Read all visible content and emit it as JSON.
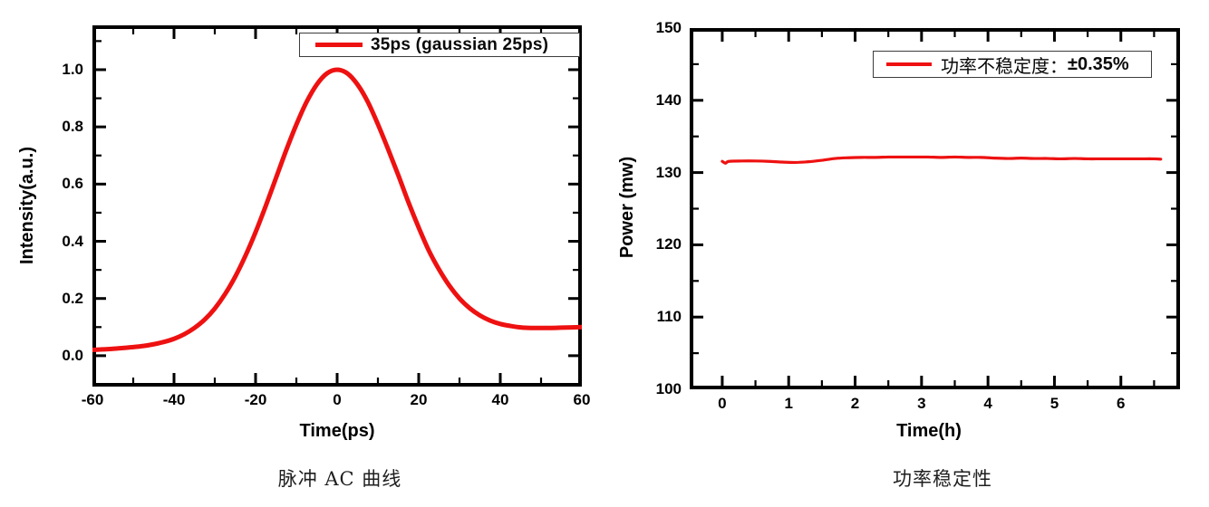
{
  "page": {
    "background": "#ffffff"
  },
  "colors": {
    "series_red": "#ee1111",
    "frame_black": "#000000",
    "text_black": "#000000",
    "caption_gray": "#1f1f1f",
    "legend_border": "#3c3c3c"
  },
  "chart_data": [
    {
      "type": "line",
      "caption": "脉冲 AC 曲线",
      "xlabel": "Time(ps)",
      "ylabel": "Intensity(a.u.)",
      "xlim": [
        -60,
        60
      ],
      "ylim": [
        -0.108,
        1.155
      ],
      "grid": false,
      "x_major_ticks": [
        -60,
        -40,
        -20,
        0,
        20,
        40,
        60
      ],
      "x_tick_labels": [
        "-60",
        "-40",
        "-20",
        "0",
        "20",
        "40",
        "60"
      ],
      "x_minor_step": 10,
      "y_major_ticks": [
        0.0,
        0.2,
        0.4,
        0.6,
        0.8,
        1.0
      ],
      "y_tick_labels": [
        "0.0",
        "0.2",
        "0.4",
        "0.6",
        "0.8",
        "1.0"
      ],
      "y_minor_step": 0.1,
      "legend": {
        "position": "top-right",
        "parts": [
          "35ps (gaussian 25ps)"
        ]
      },
      "series": [
        {
          "name": "35ps (gaussian 25ps)",
          "color": "#ee1111",
          "line_width": 5,
          "x": [
            -60,
            -57.5,
            -55,
            -52.5,
            -50,
            -47.5,
            -45,
            -42.5,
            -40,
            -37.5,
            -35,
            -32.5,
            -30,
            -27.5,
            -25,
            -22.5,
            -20,
            -17.5,
            -15,
            -12.5,
            -10,
            -7.5,
            -5,
            -2.5,
            0,
            2.5,
            5,
            7.5,
            10,
            12.5,
            15,
            17.5,
            20,
            22.5,
            25,
            27.5,
            30,
            32.5,
            35,
            37.5,
            40,
            42.5,
            45,
            47.5,
            50,
            52.5,
            55,
            57.5,
            60
          ],
          "y": [
            0.02,
            0.022,
            0.024,
            0.027,
            0.03,
            0.034,
            0.04,
            0.048,
            0.059,
            0.075,
            0.097,
            0.126,
            0.165,
            0.215,
            0.276,
            0.349,
            0.432,
            0.524,
            0.621,
            0.718,
            0.808,
            0.887,
            0.948,
            0.987,
            1.0,
            0.987,
            0.948,
            0.888,
            0.809,
            0.722,
            0.631,
            0.536,
            0.448,
            0.367,
            0.301,
            0.245,
            0.2,
            0.166,
            0.141,
            0.123,
            0.111,
            0.104,
            0.099,
            0.097,
            0.097,
            0.097,
            0.098,
            0.099,
            0.1
          ]
        }
      ]
    },
    {
      "type": "line",
      "caption": "功率稳定性",
      "xlabel": "Time(h)",
      "ylabel": "Power (mw)",
      "xlim": [
        -0.49,
        6.89
      ],
      "ylim": [
        100,
        150
      ],
      "grid": false,
      "x_major_ticks": [
        0,
        1,
        2,
        3,
        4,
        5,
        6
      ],
      "x_tick_labels": [
        "0",
        "1",
        "2",
        "3",
        "4",
        "5",
        "6"
      ],
      "x_minor_step": 0.5,
      "y_major_ticks": [
        100,
        110,
        120,
        130,
        140,
        150
      ],
      "y_tick_labels": [
        "100",
        "110",
        "120",
        "130",
        "140",
        "150"
      ],
      "y_minor_step": 5,
      "legend": {
        "position": "top-right",
        "parts": [
          "功率不稳定度：",
          "±0.35%"
        ]
      },
      "series": [
        {
          "name": "功率不稳定度：±0.35%",
          "color": "#ee1111",
          "line_width": 3.2,
          "x": [
            0,
            0.05,
            0.1,
            0.3,
            0.5,
            0.7,
            0.9,
            1.1,
            1.3,
            1.5,
            1.7,
            1.9,
            2.1,
            2.3,
            2.5,
            2.7,
            2.9,
            3.1,
            3.3,
            3.5,
            3.7,
            3.9,
            4.1,
            4.3,
            4.5,
            4.7,
            4.9,
            5.1,
            5.3,
            5.5,
            5.7,
            5.9,
            6.1,
            6.3,
            6.5,
            6.6
          ],
          "y": [
            131.55,
            131.3,
            131.55,
            131.6,
            131.6,
            131.55,
            131.45,
            131.4,
            131.5,
            131.7,
            131.95,
            132.05,
            132.1,
            132.1,
            132.15,
            132.15,
            132.15,
            132.15,
            132.1,
            132.15,
            132.1,
            132.1,
            132.0,
            131.95,
            132.0,
            131.95,
            131.95,
            131.9,
            131.95,
            131.9,
            131.9,
            131.9,
            131.9,
            131.9,
            131.9,
            131.85
          ]
        }
      ]
    }
  ]
}
